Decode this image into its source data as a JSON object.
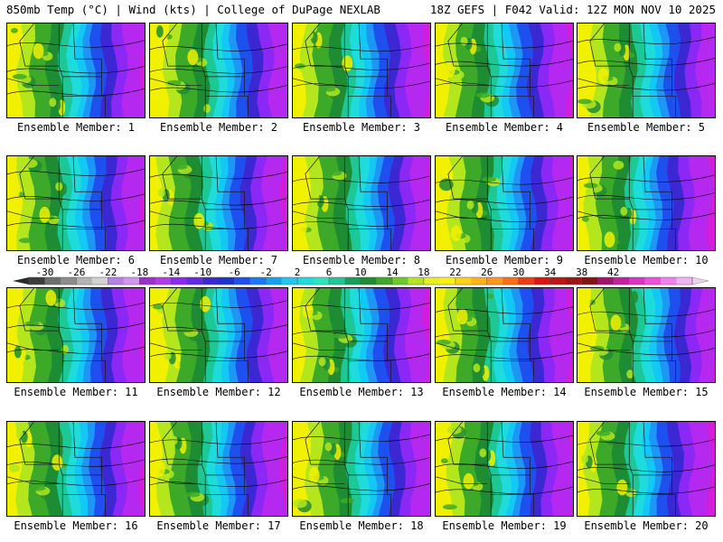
{
  "header": {
    "left": "850mb Temp (°C) | Wind (kts) | College of DuPage NEXLAB",
    "right": "18Z GEFS | F042 Valid: 12Z MON NOV 10 2025"
  },
  "panels": [
    {
      "label": "Ensemble Member: 1"
    },
    {
      "label": "Ensemble Member: 2"
    },
    {
      "label": "Ensemble Member: 3"
    },
    {
      "label": "Ensemble Member: 4"
    },
    {
      "label": "Ensemble Member: 5"
    },
    {
      "label": "Ensemble Member: 6"
    },
    {
      "label": "Ensemble Member: 7"
    },
    {
      "label": "Ensemble Member: 8"
    },
    {
      "label": "Ensemble Member: 9"
    },
    {
      "label": "Ensemble Member: 10"
    },
    {
      "label": "Ensemble Member: 11"
    },
    {
      "label": "Ensemble Member: 12"
    },
    {
      "label": "Ensemble Member: 13"
    },
    {
      "label": "Ensemble Member: 14"
    },
    {
      "label": "Ensemble Member: 15"
    },
    {
      "label": "Ensemble Member: 16"
    },
    {
      "label": "Ensemble Member: 17"
    },
    {
      "label": "Ensemble Member: 18"
    },
    {
      "label": "Ensemble Member: 19"
    },
    {
      "label": "Ensemble Member: 20"
    }
  ],
  "colorbar": {
    "tick_labels": [
      "-30",
      "-26",
      "-22",
      "-18",
      "-14",
      "-10",
      "-6",
      "-2",
      "2",
      "6",
      "10",
      "14",
      "18",
      "22",
      "26",
      "30",
      "34",
      "38",
      "42"
    ],
    "colors": [
      "#3c3c3c",
      "#6e6e6e",
      "#8c8c8c",
      "#b4b4b4",
      "#d2d2d2",
      "#b482e6",
      "#d296f0",
      "#9b30c8",
      "#b03cf0",
      "#8c28f5",
      "#6428e6",
      "#3c28d2",
      "#1e32d2",
      "#1e50f0",
      "#1e78f5",
      "#14a0f5",
      "#1ec8f0",
      "#1edcdc",
      "#28e6be",
      "#1ec896",
      "#14a05a",
      "#1e8c32",
      "#3caa28",
      "#6ec828",
      "#b4e61e",
      "#e6f01e",
      "#fff014",
      "#ffd214",
      "#ffb414",
      "#ff961e",
      "#ff6e14",
      "#f03c14",
      "#dc1414",
      "#be1414",
      "#a01414",
      "#821414",
      "#a0146e",
      "#c81ea0",
      "#dc32c8",
      "#f050dc",
      "#f082f0",
      "#f0b4f0"
    ]
  },
  "palette": {
    "yellow": "#f0f000",
    "lime": "#b4e61e",
    "green": "#3caa28",
    "darkgreen": "#1e8c32",
    "teal": "#1ec896",
    "aqua": "#1edcdc",
    "cyan": "#14c8f5",
    "lightblue": "#1e96f5",
    "blue": "#1e50f0",
    "darkblue": "#3c28d2",
    "violet": "#8c28f5",
    "purple": "#b428f0",
    "magenta": "#d21edc"
  }
}
